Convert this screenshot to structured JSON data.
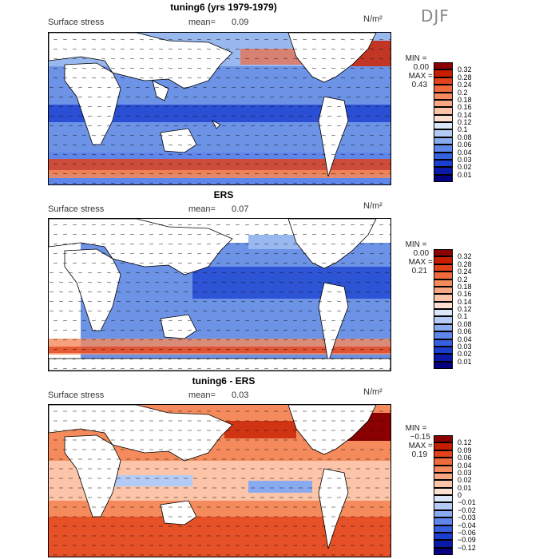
{
  "season": "DJF",
  "panels": [
    {
      "title": "tuning6 (yrs 1979-1979)",
      "variable": "Surface stress",
      "mean_label": "mean=",
      "mean_value": "0.09",
      "units": "N/m²",
      "min_label": "MIN =",
      "min_value": "0.00",
      "max_label": "MAX =",
      "max_value": "0.43",
      "colorbar": [
        "0.32",
        "0.28",
        "0.24",
        "0.2",
        "0.18",
        "0.16",
        "0.14",
        "0.12",
        "0.1",
        "0.08",
        "0.06",
        "0.04",
        "0.03",
        "0.02",
        "0.01"
      ],
      "colors": [
        "#8b0000",
        "#c81e00",
        "#e2421c",
        "#ef6a3c",
        "#f58b5c",
        "#f9a782",
        "#fcc4a8",
        "#fde0cf",
        "#d9e7f9",
        "#b3cbf5",
        "#8aaaf0",
        "#5f86ea",
        "#3560e0",
        "#1a3fd0",
        "#0a1aa6",
        "#050080"
      ]
    },
    {
      "title": "ERS",
      "variable": "Surface stress",
      "mean_label": "mean=",
      "mean_value": "0.07",
      "units": "N/m²",
      "min_label": "MIN =",
      "min_value": "0.00",
      "max_label": "MAX =",
      "max_value": "0.21",
      "colorbar": [
        "0.32",
        "0.28",
        "0.24",
        "0.2",
        "0.18",
        "0.16",
        "0.14",
        "0.12",
        "0.1",
        "0.08",
        "0.06",
        "0.04",
        "0.03",
        "0.02",
        "0.01"
      ],
      "colors": [
        "#8b0000",
        "#c81e00",
        "#e2421c",
        "#ef6a3c",
        "#f58b5c",
        "#f9a782",
        "#fcc4a8",
        "#fde0cf",
        "#d9e7f9",
        "#b3cbf5",
        "#8aaaf0",
        "#5f86ea",
        "#3560e0",
        "#1a3fd0",
        "#0a1aa6",
        "#050080"
      ]
    },
    {
      "title": "tuning6 - ERS",
      "variable": "Surface stress",
      "mean_label": "mean=",
      "mean_value": "0.03",
      "units": "N/m²",
      "min_label": "MIN =",
      "min_value": "−0.15",
      "max_label": "MAX =",
      "max_value": "0.19",
      "colorbar": [
        "0.12",
        "0.09",
        "0.06",
        "0.04",
        "0.03",
        "0.02",
        "0.01",
        "0",
        "−0.01",
        "−0.02",
        "−0.03",
        "−0.04",
        "−0.06",
        "−0.09",
        "−0.12"
      ],
      "colors": [
        "#8b0000",
        "#c81e00",
        "#e2421c",
        "#ef6a3c",
        "#f58b5c",
        "#f9a782",
        "#fcc4a8",
        "#fde0cf",
        "#d9e7f9",
        "#b3cbf5",
        "#8aaaf0",
        "#5f86ea",
        "#3560e0",
        "#1a3fd0",
        "#0a1aa6",
        "#050080"
      ]
    }
  ]
}
